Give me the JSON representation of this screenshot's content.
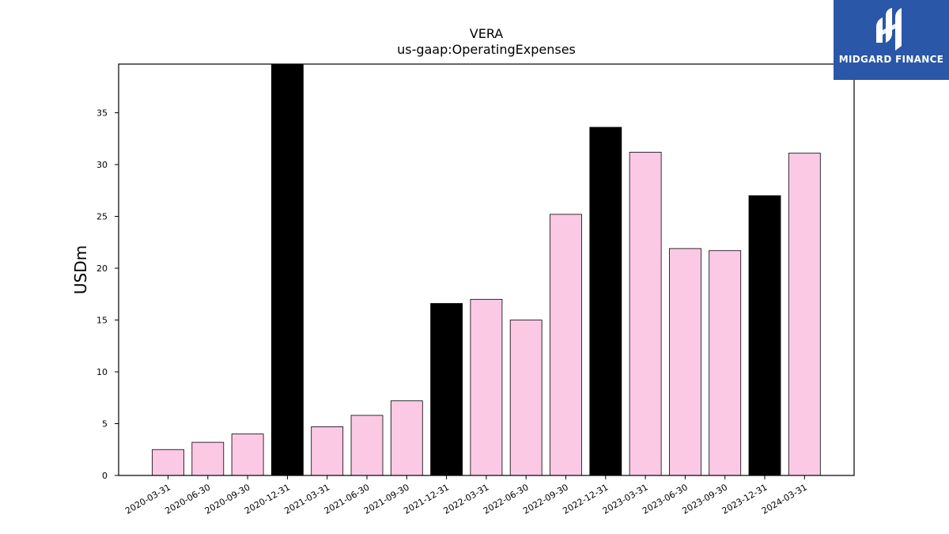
{
  "chart_data": {
    "type": "bar",
    "title": "VERA",
    "subtitle": "us-gaap:OperatingExpenses",
    "xlabel": "",
    "ylabel": "USDm",
    "ylim": [
      0,
      39.7
    ],
    "yticks": [
      0,
      5,
      10,
      15,
      20,
      25,
      30,
      35
    ],
    "grid": false,
    "categories": [
      "2020-03-31",
      "2020-06-30",
      "2020-09-30",
      "2020-12-31",
      "2021-03-31",
      "2021-06-30",
      "2021-09-30",
      "2021-12-31",
      "2022-03-31",
      "2022-06-30",
      "2022-09-30",
      "2022-12-31",
      "2023-03-31",
      "2023-06-30",
      "2023-09-30",
      "2023-12-31",
      "2024-03-31"
    ],
    "values": [
      2.5,
      3.2,
      4.0,
      40.0,
      4.7,
      5.8,
      7.2,
      16.6,
      17.0,
      15.0,
      25.2,
      33.6,
      31.2,
      21.9,
      21.7,
      27.0,
      31.1
    ],
    "highlight": [
      false,
      false,
      false,
      true,
      false,
      false,
      false,
      true,
      false,
      false,
      false,
      true,
      false,
      false,
      false,
      true,
      false
    ],
    "colors": {
      "bar": "#fbc9e4",
      "highlight": "#000000",
      "edge": "#000000"
    }
  },
  "logo": {
    "text": "MIDGARD FINANCE",
    "background": "#2a57a8"
  }
}
